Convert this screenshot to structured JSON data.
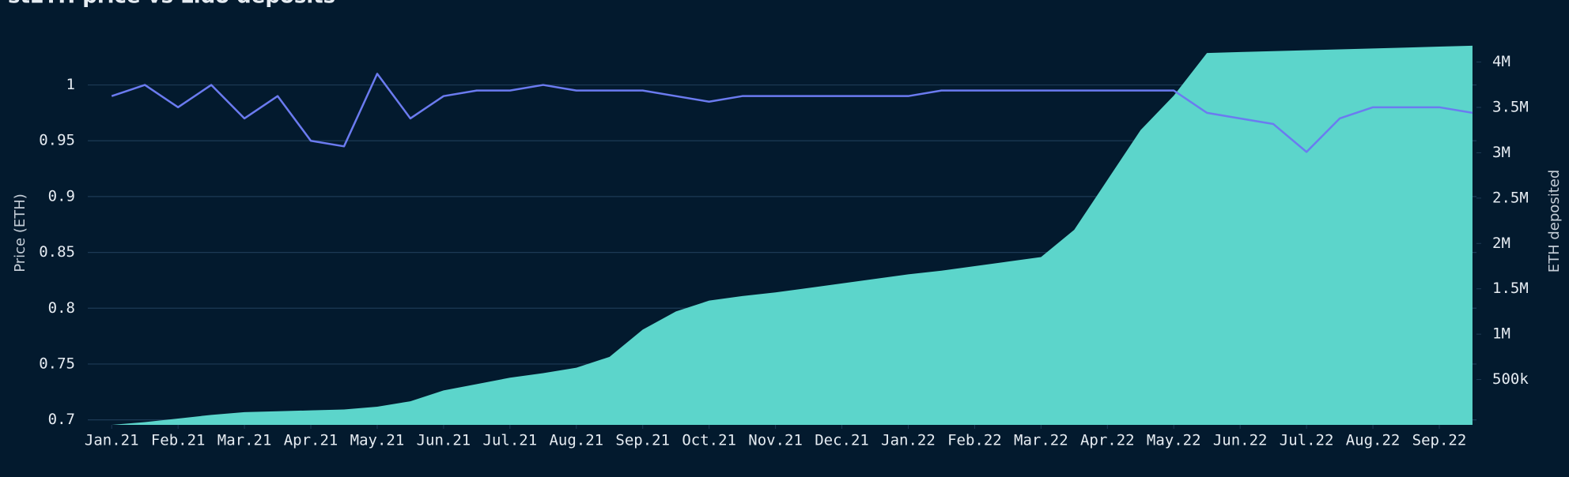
{
  "chart_data": {
    "type": "line",
    "title": "stETH price vs Lido deposits",
    "y_label": "Price (ETH)",
    "y2_label": "ETH deposited",
    "x": [
      0,
      0.5,
      1,
      1.5,
      2,
      2.5,
      3,
      3.5,
      4,
      4.5,
      5,
      5.5,
      6,
      6.5,
      7,
      7.5,
      8,
      8.5,
      9,
      9.5,
      10,
      10.5,
      11,
      11.5,
      12,
      12.5,
      13,
      13.5,
      14,
      14.5,
      15,
      15.5,
      16,
      16.5,
      17,
      17.5,
      18,
      18.5,
      19,
      19.5,
      20,
      20.5
    ],
    "xlim": [
      -0.36,
      20.56
    ],
    "xticks": [
      {
        "value": 0,
        "label": "Jan.21"
      },
      {
        "value": 1,
        "label": "Feb.21"
      },
      {
        "value": 2,
        "label": "Mar.21"
      },
      {
        "value": 3,
        "label": "Apr.21"
      },
      {
        "value": 4,
        "label": "May.21"
      },
      {
        "value": 5,
        "label": "Jun.21"
      },
      {
        "value": 6,
        "label": "Jul.21"
      },
      {
        "value": 7,
        "label": "Aug.21"
      },
      {
        "value": 8,
        "label": "Sep.21"
      },
      {
        "value": 9,
        "label": "Oct.21"
      },
      {
        "value": 10,
        "label": "Nov.21"
      },
      {
        "value": 11,
        "label": "Dec.21"
      },
      {
        "value": 12,
        "label": "Jan.22"
      },
      {
        "value": 13,
        "label": "Feb.22"
      },
      {
        "value": 14,
        "label": "Mar.22"
      },
      {
        "value": 15,
        "label": "Apr.22"
      },
      {
        "value": 16,
        "label": "May.22"
      },
      {
        "value": 17,
        "label": "Jun.22"
      },
      {
        "value": 18,
        "label": "Jul.22"
      },
      {
        "value": 19,
        "label": "Aug.22"
      },
      {
        "value": 20,
        "label": "Sep.22"
      }
    ],
    "ylim": [
      0.6955,
      1.04
    ],
    "yticks": [
      0.7,
      0.75,
      0.8,
      0.85,
      0.9,
      0.95,
      1
    ],
    "y2lim": [
      0,
      4240000
    ],
    "y2ticks": [
      {
        "value": 500000,
        "label": "500k"
      },
      {
        "value": 1000000,
        "label": "1M"
      },
      {
        "value": 1500000,
        "label": "1.5M"
      },
      {
        "value": 2000000,
        "label": "2M"
      },
      {
        "value": 2500000,
        "label": "2.5M"
      },
      {
        "value": 3000000,
        "label": "3M"
      },
      {
        "value": 3500000,
        "label": "3.5M"
      },
      {
        "value": 4000000,
        "label": "4M"
      }
    ],
    "grid": true,
    "series": [
      {
        "type": "area",
        "axis": "y2",
        "color": "#5cd5cb",
        "values": [
          0,
          30000,
          70000,
          110000,
          140000,
          150000,
          160000,
          170000,
          200000,
          260000,
          380000,
          450000,
          520000,
          570000,
          630000,
          750000,
          1050000,
          1250000,
          1370000,
          1420000,
          1460000,
          1510000,
          1560000,
          1610000,
          1660000,
          1700000,
          1750000,
          1800000,
          1850000,
          2150000,
          2700000,
          3250000,
          3630000,
          4100000,
          4110000,
          4120000,
          4130000,
          4140000,
          4150000,
          4160000,
          4170000,
          4180000
        ]
      },
      {
        "type": "line",
        "color": "#6b7bf0",
        "values": [
          0.99,
          1.0,
          0.98,
          1.0,
          0.97,
          0.99,
          0.95,
          0.945,
          1.01,
          0.97,
          0.99,
          0.995,
          0.995,
          1.0,
          0.995,
          0.995,
          0.995,
          0.99,
          0.985,
          0.99,
          0.99,
          0.99,
          0.99,
          0.99,
          0.99,
          0.995,
          0.995,
          0.995,
          0.995,
          0.995,
          0.995,
          0.995,
          0.995,
          0.975,
          0.97,
          0.965,
          0.94,
          0.97,
          0.98,
          0.98,
          0.98,
          0.975
        ]
      }
    ]
  }
}
